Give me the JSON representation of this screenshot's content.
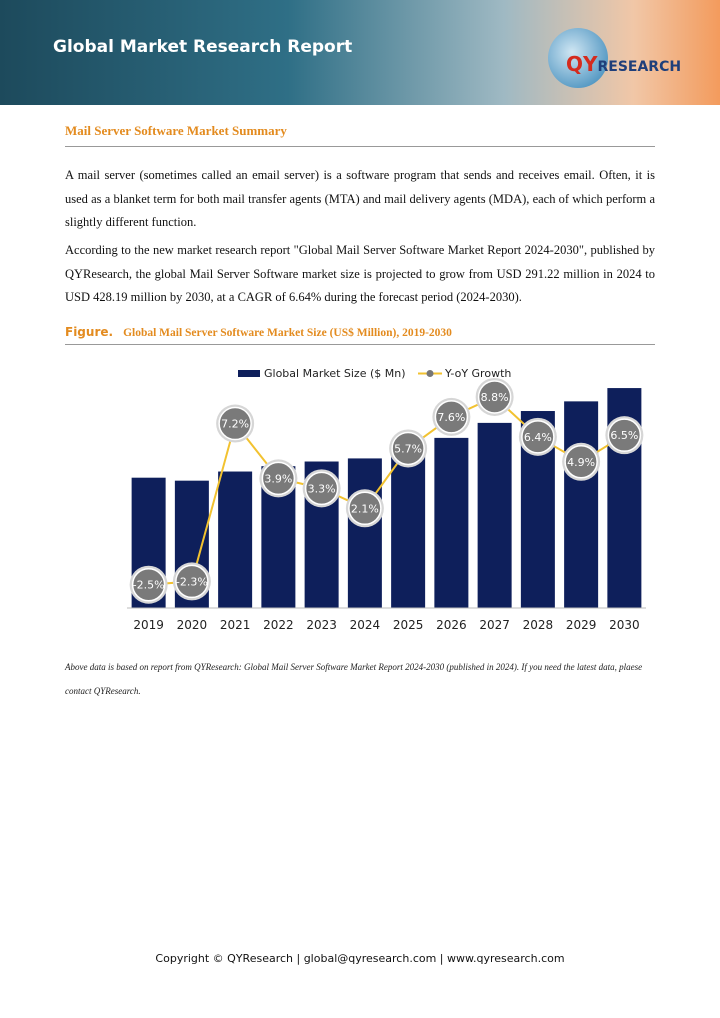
{
  "header": {
    "title": "Global Market Research Report",
    "logo_main": "QY",
    "logo_rest": "RESEARCH"
  },
  "section_title": "Mail Server Software Market Summary",
  "paragraphs": [
    "A mail server (sometimes called an email server) is a software program that sends and receives email. Often, it is used as a blanket term for both mail transfer agents (MTA) and mail delivery agents (MDA), each of which perform a slightly different function.",
    "According to the new market research report \"Global Mail Server Software Market Report 2024-2030\", published by QYResearch, the global Mail Server Software market size is projected to grow from USD 291.22 million in 2024 to USD 428.19 million by 2030, at a CAGR of 6.64% during the forecast period (2024-2030)."
  ],
  "figure": {
    "label": "Figure.",
    "title": "Global Mail Server Software Market Size (US$ Million), 2019-2030"
  },
  "chart_data": {
    "type": "bar",
    "categories": [
      "2019",
      "2020",
      "2021",
      "2022",
      "2023",
      "2024",
      "2025",
      "2026",
      "2027",
      "2028",
      "2029",
      "2030"
    ],
    "series": [
      {
        "name": "Global Market Size ($ Mn)",
        "color": "#0e1f5b",
        "values": [
          253.7,
          247.9,
          265.7,
          276.1,
          285.2,
          291.22,
          307.8,
          331.2,
          360.4,
          383.5,
          402.3,
          428.19
        ]
      },
      {
        "name": "Y-oY Growth",
        "type": "line",
        "axis": "y2",
        "color": "#f2c230",
        "values": [
          -2.5,
          -2.3,
          7.2,
          3.9,
          3.3,
          2.1,
          5.7,
          7.6,
          8.8,
          6.4,
          4.9,
          6.5
        ],
        "value_labels": [
          "-2.5%",
          "-2.3%",
          "7.2%",
          "3.9%",
          "3.3%",
          "2.1%",
          "5.7%",
          "7.6%",
          "8.8%",
          "6.4%",
          "4.9%",
          "6.5%"
        ]
      }
    ],
    "ylim": [
      0,
      440
    ],
    "y2lim": [
      -3.9,
      9.7
    ],
    "legend": "top"
  },
  "note": "Above data is based on report from QYResearch: Global Mail Server Software Market Report 2024-2030 (published in 2024). If you need the latest data, plaese contact QYResearch.",
  "footer": "Copyright © QYResearch | global@qyresearch.com | www.qyresearch.com"
}
